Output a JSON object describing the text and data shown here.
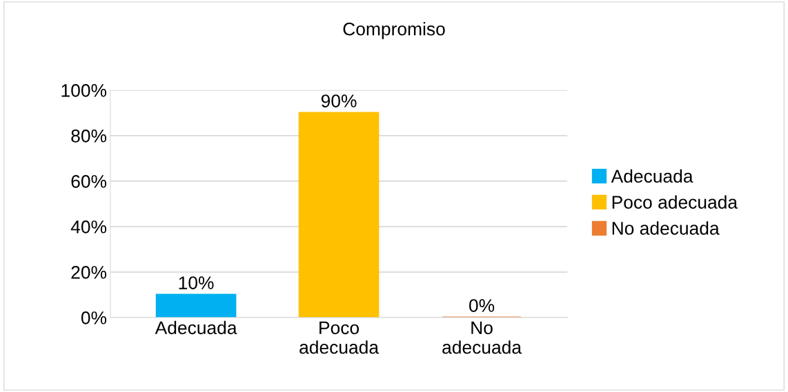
{
  "chart_data": {
    "type": "bar",
    "title": "Compromiso",
    "categories": [
      "Adecuada",
      "Poco adecuada",
      "No adecuada"
    ],
    "series": [
      {
        "name": "Adecuada",
        "color": "#00b0f0",
        "values": [
          10,
          null,
          null
        ],
        "value_labels": [
          "10%",
          null,
          null
        ]
      },
      {
        "name": "Poco adecuada",
        "color": "#ffc000",
        "values": [
          null,
          90,
          null
        ],
        "value_labels": [
          null,
          "90%",
          null
        ]
      },
      {
        "name": "No adecuada",
        "color": "#ed7d31",
        "values": [
          null,
          null,
          0
        ],
        "value_labels": [
          null,
          null,
          "0%"
        ]
      }
    ],
    "ylim": [
      0,
      100
    ],
    "yticks": [
      {
        "value": 0,
        "label": "0%"
      },
      {
        "value": 20,
        "label": "20%"
      },
      {
        "value": 40,
        "label": "40%"
      },
      {
        "value": 60,
        "label": "60%"
      },
      {
        "value": 80,
        "label": "80%"
      },
      {
        "value": 100,
        "label": "100%"
      }
    ],
    "grid": "y",
    "legend": "right"
  }
}
